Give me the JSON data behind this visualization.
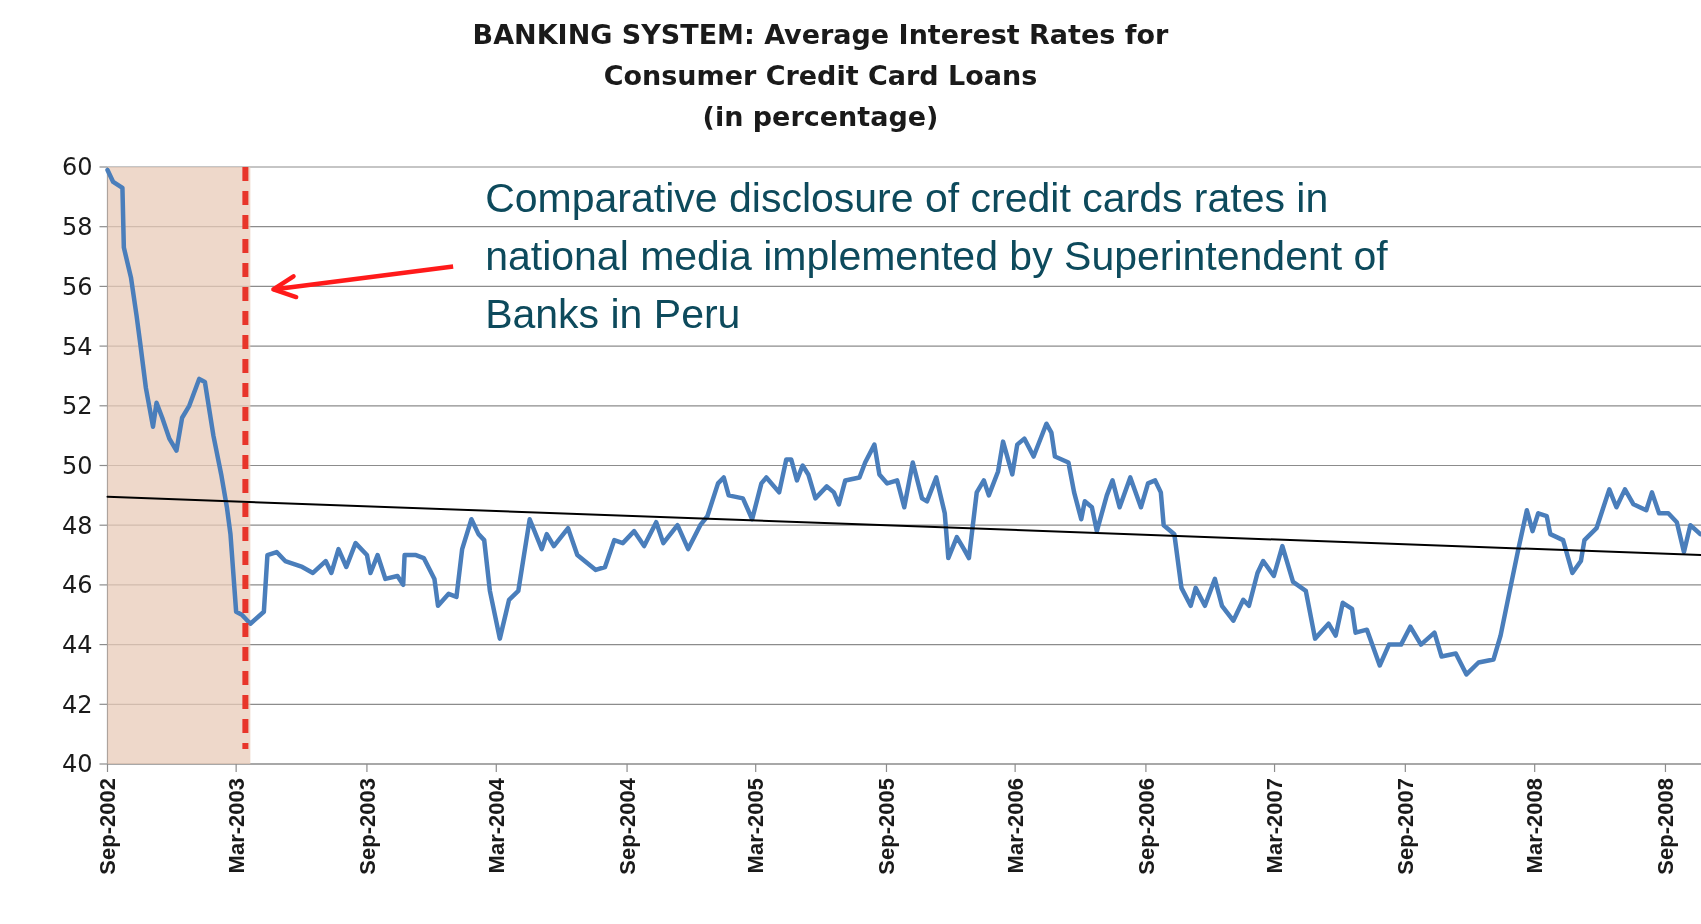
{
  "chart_data": {
    "type": "line",
    "title": "BANKING SYSTEM: Average Interest Rates for Consumer Credit Card Loans",
    "subtitle": "(in percentage)",
    "annotations": [
      "Comparative disclosure of credit cards rates in national media implemented by Superintendent of Banks in Peru"
    ],
    "xlim": [
      "2002-09-01",
      "2008-10-21"
    ],
    "xticks": [
      {
        "value": "2002-09-01",
        "label": "Sep-2002"
      },
      {
        "value": "2003-03-01",
        "label": "Mar-2003"
      },
      {
        "value": "2003-09-01",
        "label": "Sep-2003"
      },
      {
        "value": "2004-03-01",
        "label": "Mar-2004"
      },
      {
        "value": "2004-09-01",
        "label": "Sep-2004"
      },
      {
        "value": "2005-03-01",
        "label": "Mar-2005"
      },
      {
        "value": "2005-09-01",
        "label": "Sep-2005"
      },
      {
        "value": "2006-03-01",
        "label": "Mar-2006"
      },
      {
        "value": "2006-09-01",
        "label": "Sep-2006"
      },
      {
        "value": "2007-03-01",
        "label": "Mar-2007"
      },
      {
        "value": "2007-09-01",
        "label": "Sep-2007"
      },
      {
        "value": "2008-03-01",
        "label": "Mar-2008"
      },
      {
        "value": "2008-09-01",
        "label": "Sep-2008"
      }
    ],
    "ylim": [
      40,
      60
    ],
    "yticks": [
      40,
      42,
      44,
      46,
      48,
      50,
      52,
      54,
      56,
      58,
      60
    ],
    "grid": "y",
    "bands": [
      {
        "axis": "x",
        "from": "2002-09-01",
        "to": "2003-03-21",
        "color": "#e8cbb8"
      }
    ],
    "ref_lines": [
      {
        "axis": "x",
        "value": "2003-03-14",
        "color": "#e8352a",
        "line_style": "dashed"
      }
    ],
    "series": [
      {
        "color": "#4a7ebb",
        "x": [
          "2002-09-01",
          "2002-09-09",
          "2002-09-22",
          "2002-09-24",
          "2002-10-04",
          "2002-10-12",
          "2002-10-17",
          "2002-10-25",
          "2002-11-04",
          "2002-11-09",
          "2002-11-17",
          "2002-11-27",
          "2002-12-07",
          "2002-12-15",
          "2002-12-25",
          "2003-01-08",
          "2003-01-16",
          "2003-01-28",
          "2003-02-08",
          "2003-02-16",
          "2003-02-21",
          "2003-03-01",
          "2003-03-09",
          "2003-03-21",
          "2003-04-09",
          "2003-04-14",
          "2003-04-27",
          "2003-05-09",
          "2003-06-02",
          "2003-06-17",
          "2003-07-05",
          "2003-07-13",
          "2003-07-23",
          "2003-08-03",
          "2003-08-16",
          "2003-09-01",
          "2003-09-06",
          "2003-09-16",
          "2003-09-27",
          "2003-10-14",
          "2003-10-22",
          "2003-10-24",
          "2003-11-09",
          "2003-11-20",
          "2003-12-05",
          "2003-12-10",
          "2003-12-25",
          "2004-01-05",
          "2004-01-13",
          "2004-01-26",
          "2004-02-05",
          "2004-02-13",
          "2004-02-21",
          "2004-03-06",
          "2004-03-19",
          "2004-04-01",
          "2004-04-17",
          "2004-05-04",
          "2004-05-11",
          "2004-05-21",
          "2004-06-10",
          "2004-06-23",
          "2004-07-19",
          "2004-08-01",
          "2004-08-14",
          "2004-08-26",
          "2004-09-11",
          "2004-09-25",
          "2004-10-12",
          "2004-10-22",
          "2004-11-11",
          "2004-11-26",
          "2004-12-13",
          "2004-12-23",
          "2005-01-07",
          "2005-01-15",
          "2005-01-22",
          "2005-02-11",
          "2005-02-24",
          "2005-03-09",
          "2005-03-16",
          "2005-04-03",
          "2005-04-13",
          "2005-04-20",
          "2005-04-28",
          "2005-05-06",
          "2005-05-14",
          "2005-05-24",
          "2005-06-09",
          "2005-06-19",
          "2005-06-26",
          "2005-07-05",
          "2005-07-25",
          "2005-08-02",
          "2005-08-15",
          "2005-08-22",
          "2005-09-02",
          "2005-09-16",
          "2005-09-26",
          "2005-10-08",
          "2005-10-21",
          "2005-10-28",
          "2005-11-10",
          "2005-11-22",
          "2005-11-27",
          "2005-12-09",
          "2005-12-19",
          "2005-12-26",
          "2006-01-06",
          "2006-01-16",
          "2006-01-23",
          "2006-02-05",
          "2006-02-12",
          "2006-02-25",
          "2006-03-04",
          "2006-03-14",
          "2006-03-27",
          "2006-04-14",
          "2006-04-21",
          "2006-04-26",
          "2006-05-15",
          "2006-05-23",
          "2006-06-02",
          "2006-06-07",
          "2006-06-17",
          "2006-06-24",
          "2006-07-08",
          "2006-07-16",
          "2006-07-26",
          "2006-08-10",
          "2006-08-25",
          "2006-09-04",
          "2006-09-14",
          "2006-09-22",
          "2006-09-26",
          "2006-10-11",
          "2006-10-21",
          "2006-11-03",
          "2006-11-10",
          "2006-11-23",
          "2006-12-07",
          "2006-12-17",
          "2007-01-02",
          "2007-01-16",
          "2007-01-24",
          "2007-02-05",
          "2007-02-13",
          "2007-02-28",
          "2007-03-12",
          "2007-03-27",
          "2007-04-14",
          "2007-04-27",
          "2007-05-16",
          "2007-05-26",
          "2007-06-05",
          "2007-06-18",
          "2007-06-23",
          "2007-07-09",
          "2007-07-27",
          "2007-08-09",
          "2007-08-26",
          "2007-09-08",
          "2007-09-23",
          "2007-10-12",
          "2007-10-22",
          "2007-11-11",
          "2007-11-26",
          "2007-12-13",
          "2008-01-03",
          "2008-01-13",
          "2008-01-25",
          "2008-02-07",
          "2008-02-19",
          "2008-02-27",
          "2008-03-06",
          "2008-03-18",
          "2008-03-23",
          "2008-04-10",
          "2008-04-23",
          "2008-05-05",
          "2008-05-10",
          "2008-05-27",
          "2008-06-14",
          "2008-06-24",
          "2008-07-06",
          "2008-07-18",
          "2008-08-05",
          "2008-08-13",
          "2008-08-23",
          "2008-09-05",
          "2008-09-17",
          "2008-09-27",
          "2008-10-06",
          "2008-10-20"
        ],
        "values": [
          59.9,
          59.5,
          59.3,
          57.3,
          56.3,
          55.0,
          54.1,
          52.6,
          51.3,
          52.1,
          51.6,
          50.9,
          50.5,
          51.6,
          52.0,
          52.9,
          52.8,
          51.0,
          49.7,
          48.6,
          47.7,
          45.1,
          45.0,
          44.7,
          45.1,
          47.0,
          47.1,
          46.8,
          46.6,
          46.4,
          46.8,
          46.4,
          47.2,
          46.6,
          47.4,
          47.0,
          46.4,
          47.0,
          46.2,
          46.3,
          46.0,
          47.0,
          47.0,
          46.9,
          46.2,
          45.3,
          45.7,
          45.6,
          47.2,
          48.2,
          47.7,
          47.5,
          45.8,
          44.2,
          45.5,
          45.8,
          48.2,
          47.2,
          47.7,
          47.3,
          47.9,
          47.0,
          46.5,
          46.6,
          47.5,
          47.4,
          47.8,
          47.3,
          48.1,
          47.4,
          48.0,
          47.2,
          48.0,
          48.3,
          49.4,
          49.6,
          49.0,
          48.9,
          48.2,
          49.4,
          49.6,
          49.1,
          50.2,
          50.2,
          49.5,
          50.0,
          49.7,
          48.9,
          49.3,
          49.1,
          48.7,
          49.5,
          49.6,
          50.1,
          50.7,
          49.7,
          49.4,
          49.5,
          48.6,
          50.1,
          48.9,
          48.8,
          49.6,
          48.4,
          46.9,
          47.6,
          47.2,
          46.9,
          49.1,
          49.5,
          49.0,
          49.8,
          50.8,
          49.7,
          50.7,
          50.9,
          50.3,
          51.4,
          51.1,
          50.3,
          50.1,
          49.1,
          48.2,
          48.8,
          48.6,
          47.8,
          49.0,
          49.5,
          48.6,
          49.6,
          48.6,
          49.4,
          49.5,
          49.1,
          48.0,
          47.7,
          45.9,
          45.3,
          45.9,
          45.3,
          46.2,
          45.3,
          44.8,
          45.5,
          45.3,
          46.4,
          46.8,
          46.3,
          47.3,
          46.1,
          45.8,
          44.2,
          44.7,
          44.3,
          45.4,
          45.2,
          44.4,
          44.5,
          43.3,
          44.0,
          44.0,
          44.6,
          44.0,
          44.4,
          43.6,
          43.7,
          43.0,
          43.4,
          43.5,
          44.3,
          45.7,
          47.2,
          48.5,
          47.8,
          48.4,
          48.3,
          47.7,
          47.5,
          46.4,
          46.8,
          47.5,
          47.9,
          49.2,
          48.6,
          49.2,
          48.7,
          48.5,
          49.1,
          48.4,
          48.4,
          48.1,
          47.1,
          48.0,
          47.7
        ]
      },
      {
        "type": "line",
        "color": "#000000",
        "x": [
          "2002-09-01",
          "2008-10-21"
        ],
        "values": [
          48.95,
          47.0
        ]
      }
    ]
  }
}
